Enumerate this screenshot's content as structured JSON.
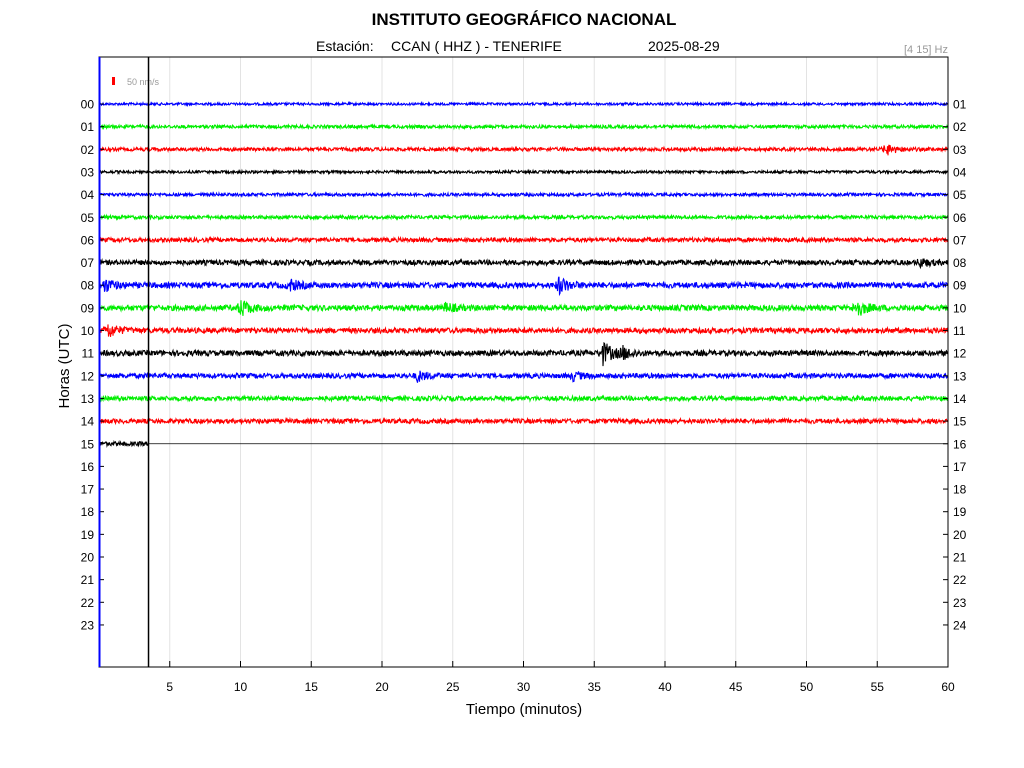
{
  "chart_data": {
    "type": "line",
    "title": "INSTITUTO GEOGRÁFICO NACIONAL",
    "station_label": "Estación:",
    "station": "CCAN ( HHZ ) - TENERIFE",
    "date": "2025-08-29",
    "filter": "[4 15] Hz",
    "scale_label": "50 nm/s",
    "xlabel": "Tiempo (minutos)",
    "ylabel": "Horas (UTC)",
    "xlim": [
      0,
      60
    ],
    "x_ticks": [
      "5",
      "10",
      "15",
      "20",
      "25",
      "30",
      "35",
      "40",
      "45",
      "50",
      "55",
      "60"
    ],
    "left_hours": [
      "00",
      "01",
      "02",
      "03",
      "04",
      "05",
      "06",
      "07",
      "08",
      "09",
      "10",
      "11",
      "12",
      "13",
      "14",
      "15",
      "16",
      "17",
      "18",
      "19",
      "20",
      "21",
      "22",
      "23"
    ],
    "right_hours": [
      "01",
      "02",
      "03",
      "04",
      "05",
      "06",
      "07",
      "08",
      "09",
      "10",
      "11",
      "12",
      "13",
      "14",
      "15",
      "16",
      "17",
      "18",
      "19",
      "20",
      "21",
      "22",
      "23",
      "24"
    ],
    "current_time_minute": 3.5,
    "grid": true,
    "series": [
      {
        "hour": "00",
        "color": "#0000ff",
        "noise": 1.2,
        "events": []
      },
      {
        "hour": "01",
        "color": "#00ee00",
        "noise": 1.6,
        "events": []
      },
      {
        "hour": "02",
        "color": "#ff0000",
        "noise": 1.7,
        "events": [
          {
            "minute": 55.6,
            "amp": 6
          }
        ]
      },
      {
        "hour": "03",
        "color": "#000000",
        "noise": 1.3,
        "events": []
      },
      {
        "hour": "04",
        "color": "#0000ff",
        "noise": 1.5,
        "events": []
      },
      {
        "hour": "05",
        "color": "#00ee00",
        "noise": 1.7,
        "events": []
      },
      {
        "hour": "06",
        "color": "#ff0000",
        "noise": 2.1,
        "events": []
      },
      {
        "hour": "07",
        "color": "#000000",
        "noise": 2.5,
        "events": [
          {
            "minute": 58,
            "amp": 4
          }
        ]
      },
      {
        "hour": "08",
        "color": "#0000ff",
        "noise": 2.8,
        "events": [
          {
            "minute": 0.4,
            "amp": 6
          },
          {
            "minute": 13.5,
            "amp": 5
          },
          {
            "minute": 32.5,
            "amp": 8
          }
        ]
      },
      {
        "hour": "09",
        "color": "#00ee00",
        "noise": 2.8,
        "events": [
          {
            "minute": 10,
            "amp": 8
          },
          {
            "minute": 24.5,
            "amp": 4
          },
          {
            "minute": 53.5,
            "amp": 9
          }
        ]
      },
      {
        "hour": "10",
        "color": "#ff0000",
        "noise": 2.6,
        "events": [
          {
            "minute": 0.6,
            "amp": 7
          }
        ]
      },
      {
        "hour": "11",
        "color": "#000000",
        "noise": 2.7,
        "events": [
          {
            "minute": 35.6,
            "amp": 11
          },
          {
            "minute": 37,
            "amp": 5
          }
        ]
      },
      {
        "hour": "12",
        "color": "#0000ff",
        "noise": 2.4,
        "events": [
          {
            "minute": 22.5,
            "amp": 5
          },
          {
            "minute": 33.5,
            "amp": 4
          }
        ]
      },
      {
        "hour": "13",
        "color": "#00ee00",
        "noise": 2.3,
        "events": []
      },
      {
        "hour": "14",
        "color": "#ff0000",
        "noise": 2.3,
        "events": []
      },
      {
        "hour": "15",
        "color": "#000000",
        "noise": 2.1,
        "events": [],
        "end_minute": 3.5
      }
    ]
  }
}
